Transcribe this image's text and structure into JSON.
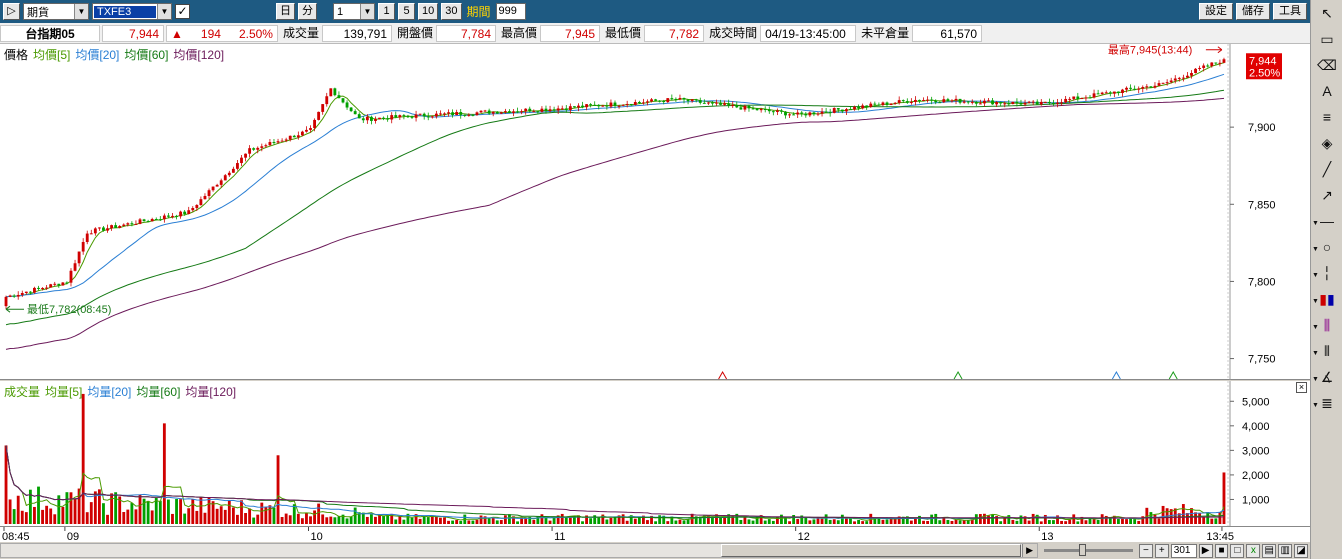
{
  "toolbar": {
    "market_value": "期貨",
    "symbol_value": "TXFE3",
    "day_button": "日",
    "minute_button": "分",
    "interval_value": "1",
    "interval_buttons": [
      "1",
      "5",
      "10",
      "30"
    ],
    "period_label": "期間",
    "period_value": "999",
    "settings_button": "設定",
    "save_button": "儲存",
    "tools_button": "工具"
  },
  "quote": {
    "name": "台指期05",
    "last": "7,944",
    "change": "194",
    "change_pct": "2.50%",
    "volume_label": "成交量",
    "volume": "139,791",
    "open_label": "開盤價",
    "open": "7,784",
    "high_label": "最高價",
    "high": "7,945",
    "low_label": "最低價",
    "low": "7,782",
    "time_label": "成交時間",
    "time": "04/19-13:45:00",
    "oi_label": "未平倉量",
    "oi": "61,570"
  },
  "price_pane": {
    "legend": [
      {
        "text": "價格",
        "color": "#000000"
      },
      {
        "text": "均價[5]",
        "color": "#4a9a00"
      },
      {
        "text": "均價[20]",
        "color": "#2a7fd4"
      },
      {
        "text": "均價[60]",
        "color": "#157a15"
      },
      {
        "text": "均價[120]",
        "color": "#6b1a5a"
      }
    ],
    "high_annotation": "最高7,945(13:44)",
    "low_annotation": "最低7,782(08:45)",
    "last_tag": "7,944",
    "pct_tag": "2.50%",
    "y_ticks": [
      "7,750",
      "7,800",
      "7,850",
      "7,900"
    ]
  },
  "volume_pane": {
    "legend": [
      {
        "text": "成交量",
        "color": "#4a9a00"
      },
      {
        "text": "均量[5]",
        "color": "#4a9a00"
      },
      {
        "text": "均量[20]",
        "color": "#2a7fd4"
      },
      {
        "text": "均量[60]",
        "color": "#157a15"
      },
      {
        "text": "均量[120]",
        "color": "#6b1a5a"
      }
    ],
    "y_ticks": [
      "1,000",
      "2,000",
      "3,000",
      "4,000",
      "5,000"
    ],
    "close_glyph": "×"
  },
  "time_axis": [
    "08:45",
    "09",
    "10",
    "11",
    "12",
    "13",
    "13:45"
  ],
  "scroll": {
    "bar_count": "301"
  },
  "tool_icons": [
    "pointer-icon",
    "folder-icon",
    "eraser-icon",
    "text-icon",
    "lines-icon",
    "fill-icon",
    "line-icon",
    "arrow-icon",
    "hline-icon",
    "circle-icon",
    "vline-icon",
    "candle-icon",
    "fan-icon",
    "grid-icon",
    "angle-icon",
    "fibo-icon"
  ],
  "colors": {
    "up": "#d00000",
    "down": "#00a000",
    "toolbar": "#1e5a82"
  },
  "chart_data": {
    "type": "candlestick",
    "y_range": [
      7740,
      7950
    ],
    "open": 7784,
    "high": 7945,
    "low": 7782,
    "close": 7944,
    "key_points": [
      {
        "time": "08:45",
        "price": 7790
      },
      {
        "time": "09:00",
        "price": 7800
      },
      {
        "time": "09:05",
        "price": 7832
      },
      {
        "time": "09:30",
        "price": 7845
      },
      {
        "time": "09:45",
        "price": 7885
      },
      {
        "time": "10:00",
        "price": 7898
      },
      {
        "time": "10:05",
        "price": 7925
      },
      {
        "time": "10:12",
        "price": 7905
      },
      {
        "time": "10:30",
        "price": 7908
      },
      {
        "time": "11:00",
        "price": 7912
      },
      {
        "time": "11:30",
        "price": 7918
      },
      {
        "time": "12:00",
        "price": 7908
      },
      {
        "time": "12:30",
        "price": 7918
      },
      {
        "time": "13:00",
        "price": 7915
      },
      {
        "time": "13:30",
        "price": 7928
      },
      {
        "time": "13:45",
        "price": 7944
      }
    ],
    "volume_y_range": [
      0,
      5500
    ],
    "volume_peaks": [
      {
        "time": "08:45",
        "volume": 3200
      },
      {
        "time": "09:04",
        "volume": 5300
      },
      {
        "time": "09:24",
        "volume": 4100
      },
      {
        "time": "09:52",
        "volume": 2800
      },
      {
        "time": "13:45",
        "volume": 2100
      }
    ]
  }
}
